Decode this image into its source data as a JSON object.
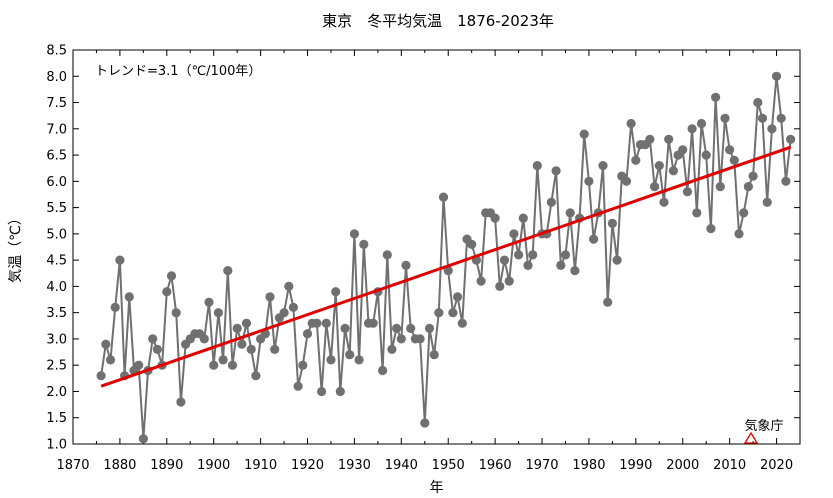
{
  "chart_data": {
    "type": "line",
    "title": "東京　冬平均気温　1876-2023年",
    "xlabel": "年",
    "ylabel": "気温（℃）",
    "xlim": [
      1870,
      2025
    ],
    "ylim": [
      1.0,
      8.5
    ],
    "x_ticks": [
      1870,
      1880,
      1890,
      1900,
      1910,
      1920,
      1930,
      1940,
      1950,
      1960,
      1970,
      1980,
      1990,
      2000,
      2010,
      2020
    ],
    "y_ticks": [
      "1.0",
      "1.5",
      "2.0",
      "2.5",
      "3.0",
      "3.5",
      "4.0",
      "4.5",
      "5.0",
      "5.5",
      "6.0",
      "6.5",
      "7.0",
      "7.5",
      "8.0",
      "8.5"
    ],
    "annotation": "トレンド=3.1（℃/100年）",
    "source_label": "気象庁",
    "grid": false,
    "series": [
      {
        "start_year": 1876,
        "color": "#707070",
        "values": [
          2.3,
          2.9,
          2.6,
          3.6,
          4.5,
          2.3,
          3.8,
          2.4,
          2.5,
          1.1,
          2.4,
          3.0,
          2.8,
          2.5,
          3.9,
          4.2,
          3.5,
          1.8,
          2.9,
          3.0,
          3.1,
          3.1,
          3.0,
          3.7,
          2.5,
          3.5,
          2.6,
          4.3,
          2.5,
          3.2,
          2.9,
          3.3,
          2.8,
          2.3,
          3.0,
          3.1,
          3.8,
          2.8,
          3.4,
          3.5,
          4.0,
          3.6,
          2.1,
          2.5,
          3.1,
          3.3,
          3.3,
          2.0,
          3.3,
          2.6,
          3.9,
          2.0,
          3.2,
          2.7,
          5.0,
          2.6,
          4.8,
          3.3,
          3.3,
          3.9,
          2.4,
          4.6,
          2.8,
          3.2,
          3.0,
          4.4,
          3.2,
          3.0,
          3.0,
          1.4,
          3.2,
          2.7,
          3.5,
          5.7,
          4.3,
          3.5,
          3.8,
          3.3,
          4.9,
          4.8,
          4.5,
          4.1,
          5.4,
          5.4,
          5.3,
          4.0,
          4.5,
          4.1,
          5.0,
          4.6,
          5.3,
          4.4,
          4.6,
          6.3,
          5.0,
          5.0,
          5.6,
          6.2,
          4.4,
          4.6,
          5.4,
          4.3,
          5.3,
          6.9,
          6.0,
          4.9,
          5.4,
          6.3,
          3.7,
          5.2,
          4.5,
          6.1,
          6.0,
          7.1,
          6.4,
          6.7,
          6.7,
          6.8,
          5.9,
          6.3,
          5.6,
          6.8,
          6.2,
          6.5,
          6.6,
          5.8,
          7.0,
          5.4,
          7.1,
          6.5,
          5.1,
          7.6,
          5.9,
          7.2,
          6.6,
          6.4,
          5.0,
          5.4,
          5.9,
          6.1,
          7.5,
          7.2,
          5.6,
          7.0,
          8.0,
          7.2,
          6.0,
          6.8
        ]
      },
      {
        "color": "#e00000",
        "x": [
          1876,
          2023
        ],
        "values": [
          2.1,
          6.65
        ]
      }
    ]
  }
}
